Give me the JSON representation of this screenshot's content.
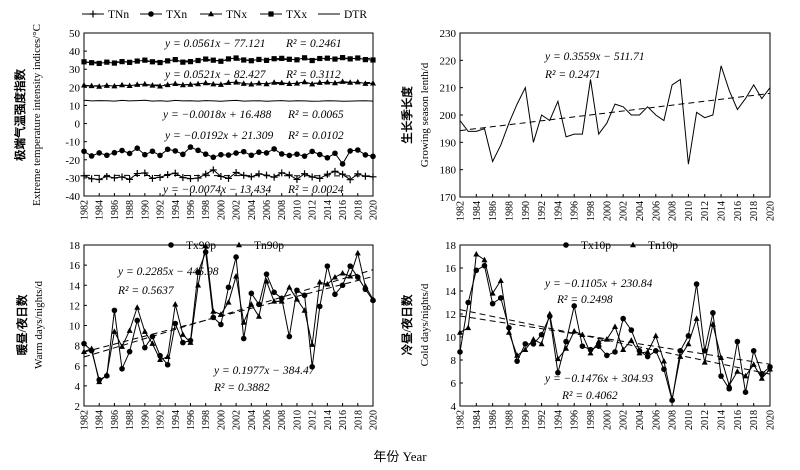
{
  "figure": {
    "xlabel": "年份 Year"
  },
  "chart_data": [
    {
      "type": "line",
      "ylabel_cn": "极端气温强度指数",
      "ylabel": "Extreme temperature intensity indices/°C",
      "ylim": [
        -40,
        50
      ],
      "yticks": [
        -40,
        -30,
        -20,
        -10,
        0,
        10,
        20,
        30,
        40,
        50
      ],
      "x": [
        1982,
        1983,
        1984,
        1985,
        1986,
        1987,
        1988,
        1989,
        1990,
        1991,
        1992,
        1993,
        1994,
        1995,
        1996,
        1997,
        1998,
        1999,
        2000,
        2001,
        2002,
        2003,
        2004,
        2005,
        2006,
        2007,
        2008,
        2009,
        2010,
        2011,
        2012,
        2013,
        2014,
        2015,
        2016,
        2017,
        2018,
        2019,
        2020
      ],
      "xticks": [
        "1982",
        "1984",
        "1986",
        "1988",
        "1990",
        "1992",
        "1994",
        "1996",
        "1998",
        "2000",
        "2002",
        "2004",
        "2006",
        "2008",
        "2010",
        "2012",
        "2014",
        "2016",
        "2018",
        "2020"
      ],
      "legend": [
        "TNn",
        "TXn",
        "TNx",
        "TXx",
        "DTR"
      ],
      "series": [
        {
          "name": "TXx",
          "marker": "square",
          "values": [
            34.1,
            33.6,
            33.2,
            33.9,
            33.4,
            34.2,
            33.8,
            34.5,
            35.0,
            34.1,
            33.7,
            34.6,
            35.3,
            33.9,
            34.2,
            34.8,
            35.6,
            35.0,
            34.4,
            35.7,
            36.2,
            35.1,
            34.7,
            35.4,
            34.9,
            35.8,
            36.0,
            35.5,
            35.2,
            36.3,
            34.8,
            35.9,
            36.1,
            35.6,
            36.4,
            35.7,
            36.2,
            35.3,
            35.1
          ]
        },
        {
          "name": "TNx",
          "marker": "triangle",
          "values": [
            21.2,
            20.8,
            20.5,
            21.0,
            20.7,
            21.3,
            20.9,
            21.5,
            21.8,
            21.1,
            20.6,
            21.4,
            22.0,
            21.3,
            21.6,
            21.9,
            22.4,
            21.8,
            21.5,
            22.6,
            22.9,
            22.1,
            21.7,
            22.3,
            21.9,
            22.7,
            22.5,
            22.0,
            22.2,
            23.0,
            21.8,
            22.6,
            22.8,
            22.4,
            23.2,
            22.7,
            22.9,
            22.1,
            22.3
          ]
        },
        {
          "name": "DTR",
          "marker": "none",
          "values": [
            12.9,
            12.5,
            12.7,
            12.6,
            12.4,
            12.8,
            12.5,
            12.7,
            12.9,
            12.4,
            12.6,
            12.3,
            12.8,
            12.5,
            12.6,
            12.4,
            12.7,
            12.5,
            12.3,
            12.6,
            12.8,
            12.4,
            12.5,
            12.6,
            12.3,
            12.5,
            12.7,
            12.4,
            12.6,
            12.5,
            12.3,
            12.4,
            12.6,
            12.5,
            12.3,
            12.4,
            12.5,
            12.6,
            12.4
          ]
        },
        {
          "name": "TXn",
          "marker": "circle",
          "values": [
            -15.3,
            -17.9,
            -16.2,
            -17.5,
            -16.1,
            -14.9,
            -16.5,
            -13.6,
            -17.2,
            -15.3,
            -17.6,
            -14.2,
            -15.1,
            -17.0,
            -13.0,
            -14.8,
            -16.9,
            -18.6,
            -17.2,
            -17.4,
            -16.3,
            -15.5,
            -17.5,
            -15.8,
            -16.2,
            -14.0,
            -16.8,
            -17.6,
            -16.9,
            -18.0,
            -15.4,
            -17.1,
            -18.9,
            -16.4,
            -22.3,
            -15.1,
            -14.6,
            -17.3,
            -18.1
          ]
        },
        {
          "name": "TNn",
          "marker": "plus",
          "values": [
            -28.8,
            -30.5,
            -30.9,
            -29.2,
            -30.0,
            -29.5,
            -30.8,
            -27.6,
            -27.3,
            -30.3,
            -29.7,
            -28.2,
            -27.4,
            -29.8,
            -30.4,
            -30.1,
            -27.9,
            -25.6,
            -29.2,
            -30.3,
            -27.0,
            -28.6,
            -29.4,
            -27.8,
            -28.5,
            -29.6,
            -27.2,
            -28.4,
            -30.8,
            -27.7,
            -29.5,
            -30.3,
            -28.0,
            -26.4,
            -28.0,
            -31.0,
            -27.8,
            -29.1,
            -29.4
          ]
        }
      ],
      "annotations": [
        {
          "eq": "y = 0.0561x − 77.121",
          "r2": "R² = 0.2461"
        },
        {
          "eq": "y = 0.0521x − 82.427",
          "r2": "R² = 0.3112"
        },
        {
          "eq": "y = −0.0018x + 16.488",
          "r2": "R² = 0.0065"
        },
        {
          "eq": "y = −0.0192x + 21.309",
          "r2": "R² = 0.0102"
        },
        {
          "eq": "y = −0.0074x − 13.434",
          "r2": "R² = 0.0024"
        }
      ]
    },
    {
      "type": "line",
      "ylabel_cn": "生长季长度",
      "ylabel": "Growing season lenth/d",
      "ylim": [
        170,
        230
      ],
      "yticks": [
        170,
        180,
        190,
        200,
        210,
        220,
        230
      ],
      "x": [
        1982,
        1983,
        1984,
        1985,
        1986,
        1987,
        1988,
        1989,
        1990,
        1991,
        1992,
        1993,
        1994,
        1995,
        1996,
        1997,
        1998,
        1999,
        2000,
        2001,
        2002,
        2003,
        2004,
        2005,
        2006,
        2007,
        2008,
        2009,
        2010,
        2011,
        2012,
        2013,
        2014,
        2015,
        2016,
        2017,
        2018,
        2019,
        2020
      ],
      "xticks": [
        "1982",
        "1984",
        "1986",
        "1988",
        "1990",
        "1992",
        "1994",
        "1996",
        "1998",
        "2000",
        "2002",
        "2004",
        "2006",
        "2008",
        "2010",
        "2012",
        "2014",
        "2016",
        "2018",
        "2020"
      ],
      "series": [
        {
          "name": "GSL",
          "values": [
            198,
            194,
            194,
            195,
            183,
            189,
            197,
            204,
            210,
            190,
            200,
            198,
            205,
            192,
            193,
            193,
            213,
            193,
            197,
            204,
            203,
            200,
            200,
            203,
            200,
            198,
            211,
            213,
            182,
            201,
            199,
            200,
            218,
            209,
            202,
            206,
            211,
            206,
            210
          ]
        }
      ],
      "annotations": [
        {
          "eq": "y = 0.3559x − 511.71",
          "r2": "R² = 0.2471"
        }
      ]
    },
    {
      "type": "line",
      "ylabel_cn": "暖昼/夜日数",
      "ylabel": "Warm days/nights/d",
      "ylim": [
        2,
        18
      ],
      "yticks": [
        2,
        4,
        6,
        8,
        10,
        12,
        14,
        16,
        18
      ],
      "x": [
        1982,
        1983,
        1984,
        1985,
        1986,
        1987,
        1988,
        1989,
        1990,
        1991,
        1992,
        1993,
        1994,
        1995,
        1996,
        1997,
        1998,
        1999,
        2000,
        2001,
        2002,
        2003,
        2004,
        2005,
        2006,
        2007,
        2008,
        2009,
        2010,
        2011,
        2012,
        2013,
        2014,
        2015,
        2016,
        2017,
        2018,
        2019,
        2020
      ],
      "xticks": [
        "1982",
        "1984",
        "1986",
        "1988",
        "1990",
        "1992",
        "1994",
        "1996",
        "1998",
        "2000",
        "2002",
        "2004",
        "2006",
        "2008",
        "2010",
        "2012",
        "2014",
        "2016",
        "2018",
        "2020"
      ],
      "legend": [
        "Tx90p",
        "Tn90p"
      ],
      "series": [
        {
          "name": "Tx90p",
          "marker": "circle",
          "values": [
            8.2,
            7.5,
            4.6,
            5.0,
            11.5,
            5.7,
            7.4,
            10.5,
            7.8,
            8.9,
            7.0,
            6.1,
            10.2,
            8.3,
            8.5,
            15.3,
            17.3,
            10.8,
            10.1,
            13.8,
            16.8,
            8.7,
            13.2,
            12.1,
            15.1,
            13.3,
            12.7,
            8.9,
            13.5,
            13.0,
            5.9,
            11.9,
            15.9,
            13.1,
            14.0,
            15.9,
            14.8,
            13.6,
            12.5
          ]
        },
        {
          "name": "Tn90p",
          "marker": "triangle",
          "values": [
            7.4,
            7.7,
            4.4,
            5.1,
            9.4,
            7.9,
            9.5,
            11.8,
            9.4,
            8.2,
            6.6,
            6.9,
            12.1,
            9.1,
            8.3,
            14.0,
            17.9,
            11.4,
            11.1,
            12.3,
            14.9,
            10.3,
            12.1,
            10.9,
            14.4,
            12.4,
            12.4,
            13.8,
            12.6,
            11.5,
            8.1,
            14.3,
            14.1,
            14.8,
            15.2,
            14.9,
            17.2,
            13.9,
            12.6
          ]
        }
      ],
      "annotations": [
        {
          "eq": "y = 0.2285x − 445.98",
          "r2": "R² = 0.5637"
        },
        {
          "eq": "y = 0.1977x − 384.47",
          "r2": "R² = 0.3882"
        }
      ]
    },
    {
      "type": "line",
      "ylabel_cn": "冷昼/夜日数",
      "ylabel": "Cold days/nights/d",
      "ylim": [
        4,
        18
      ],
      "yticks": [
        4,
        6,
        8,
        10,
        12,
        14,
        16,
        18
      ],
      "x": [
        1982,
        1983,
        1984,
        1985,
        1986,
        1987,
        1988,
        1989,
        1990,
        1991,
        1992,
        1993,
        1994,
        1995,
        1996,
        1997,
        1998,
        1999,
        2000,
        2001,
        2002,
        2003,
        2004,
        2005,
        2006,
        2007,
        2008,
        2009,
        2010,
        2011,
        2012,
        2013,
        2014,
        2015,
        2016,
        2017,
        2018,
        2019,
        2020
      ],
      "xticks": [
        "1982",
        "1984",
        "1986",
        "1988",
        "1990",
        "1992",
        "1994",
        "1996",
        "1998",
        "2000",
        "2002",
        "2004",
        "2006",
        "2008",
        "2010",
        "2012",
        "2014",
        "2016",
        "2018",
        "2020"
      ],
      "legend": [
        "Tx10p",
        "Tn10p"
      ],
      "series": [
        {
          "name": "Tx10p",
          "marker": "circle",
          "values": [
            8.7,
            13.0,
            15.8,
            16.2,
            12.9,
            13.4,
            10.8,
            7.9,
            9.4,
            9.4,
            10.2,
            11.8,
            6.9,
            9.6,
            12.7,
            9.2,
            8.9,
            9.2,
            8.4,
            8.7,
            11.6,
            10.6,
            8.8,
            8.3,
            8.8,
            7.2,
            4.5,
            8.8,
            10.1,
            14.6,
            8.8,
            12.1,
            6.6,
            5.5,
            9.6,
            5.2,
            8.8,
            6.8,
            7.4
          ]
        },
        {
          "name": "Tn10p",
          "marker": "triangle",
          "values": [
            10.4,
            10.8,
            17.2,
            16.7,
            13.8,
            14.9,
            10.4,
            8.4,
            8.9,
            9.8,
            9.4,
            12.0,
            8.1,
            9.0,
            10.5,
            10.2,
            8.6,
            9.6,
            9.8,
            10.9,
            8.9,
            9.7,
            8.6,
            8.7,
            10.1,
            7.9,
            4.6,
            8.3,
            9.4,
            11.6,
            7.8,
            11.1,
            8.2,
            5.8,
            7.0,
            6.6,
            7.6,
            6.4,
            7.2
          ]
        }
      ],
      "annotations": [
        {
          "eq": "y = −0.1105x + 230.84",
          "r2": "R² = 0.2498"
        },
        {
          "eq": "y = −0.1476x + 304.93",
          "r2": "R² = 0.4062"
        }
      ]
    }
  ]
}
